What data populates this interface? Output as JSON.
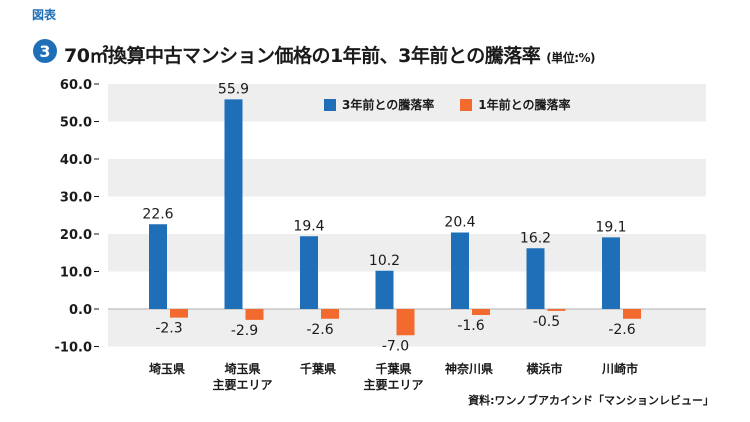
{
  "header": {
    "figure_label": "図表",
    "figure_number": "3",
    "title": "70㎡換算中古マンション価格の1年前、3年前との騰落率",
    "unit": "(単位:%)"
  },
  "source": "資料:ワンノブアカインド「マンションレビュー」",
  "colors": {
    "series1": "#1f6fb8",
    "series2": "#f26a2e",
    "band": "#eeeeee"
  },
  "chart_data": {
    "type": "bar",
    "categories": [
      [
        "埼玉県"
      ],
      [
        "埼玉県",
        "主要エリア"
      ],
      [
        "千葉県"
      ],
      [
        "千葉県",
        "主要エリア"
      ],
      [
        "神奈川県"
      ],
      [
        "横浜市"
      ],
      [
        "川崎市"
      ]
    ],
    "series": [
      {
        "name": "3年前との騰落率",
        "values": [
          22.6,
          55.9,
          19.4,
          10.2,
          20.4,
          16.2,
          19.1
        ]
      },
      {
        "name": "1年前との騰落率",
        "values": [
          -2.3,
          -2.9,
          -2.6,
          -7.0,
          -1.6,
          -0.5,
          -2.6
        ]
      }
    ],
    "ylim": [
      -10,
      60
    ],
    "yticks": [
      "60.0",
      "50.0",
      "40.0",
      "30.0",
      "20.0",
      "10.0",
      "0.0",
      "-10.0"
    ],
    "ytick_values": [
      60,
      50,
      40,
      30,
      20,
      10,
      0,
      -10
    ],
    "legend_position": "top-center"
  }
}
